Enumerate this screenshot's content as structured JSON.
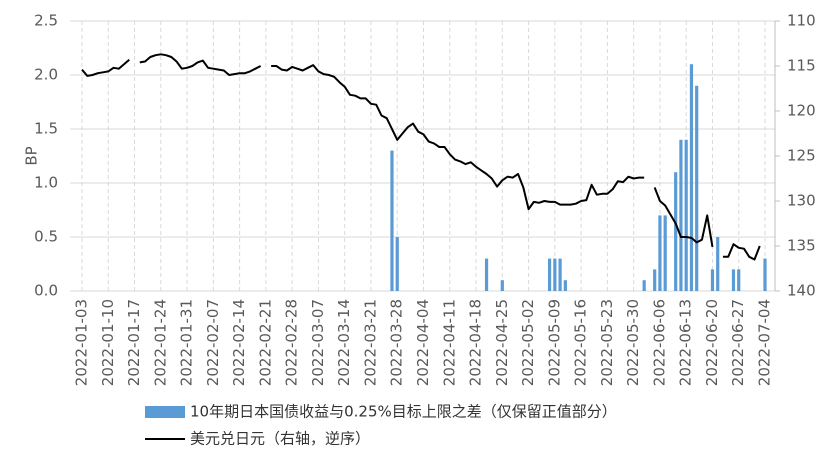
{
  "chart_data": {
    "type": "bar-line",
    "y_label": "BP",
    "x": [
      "2022-01-03",
      "2022-01-04",
      "2022-01-05",
      "2022-01-06",
      "2022-01-07",
      "2022-01-10",
      "2022-01-11",
      "2022-01-12",
      "2022-01-13",
      "2022-01-14",
      "2022-01-17",
      "2022-01-18",
      "2022-01-19",
      "2022-01-20",
      "2022-01-21",
      "2022-01-24",
      "2022-01-25",
      "2022-01-26",
      "2022-01-27",
      "2022-01-28",
      "2022-01-31",
      "2022-02-01",
      "2022-02-02",
      "2022-02-03",
      "2022-02-04",
      "2022-02-07",
      "2022-02-08",
      "2022-02-09",
      "2022-02-10",
      "2022-02-11",
      "2022-02-14",
      "2022-02-15",
      "2022-02-16",
      "2022-02-17",
      "2022-02-18",
      "2022-02-21",
      "2022-02-22",
      "2022-02-23",
      "2022-02-24",
      "2022-02-25",
      "2022-02-28",
      "2022-03-01",
      "2022-03-02",
      "2022-03-03",
      "2022-03-04",
      "2022-03-07",
      "2022-03-08",
      "2022-03-09",
      "2022-03-10",
      "2022-03-11",
      "2022-03-14",
      "2022-03-15",
      "2022-03-16",
      "2022-03-17",
      "2022-03-18",
      "2022-03-21",
      "2022-03-22",
      "2022-03-23",
      "2022-03-24",
      "2022-03-25",
      "2022-03-28",
      "2022-03-29",
      "2022-03-30",
      "2022-03-31",
      "2022-04-01",
      "2022-04-04",
      "2022-04-05",
      "2022-04-06",
      "2022-04-07",
      "2022-04-08",
      "2022-04-11",
      "2022-04-12",
      "2022-04-13",
      "2022-04-14",
      "2022-04-15",
      "2022-04-18",
      "2022-04-19",
      "2022-04-20",
      "2022-04-21",
      "2022-04-22",
      "2022-04-25",
      "2022-04-26",
      "2022-04-27",
      "2022-04-28",
      "2022-04-29",
      "2022-05-02",
      "2022-05-03",
      "2022-05-04",
      "2022-05-05",
      "2022-05-06",
      "2022-05-09",
      "2022-05-10",
      "2022-05-11",
      "2022-05-12",
      "2022-05-13",
      "2022-05-16",
      "2022-05-17",
      "2022-05-18",
      "2022-05-19",
      "2022-05-20",
      "2022-05-23",
      "2022-05-24",
      "2022-05-25",
      "2022-05-26",
      "2022-05-27",
      "2022-05-30",
      "2022-05-31",
      "2022-06-01",
      "2022-06-02",
      "2022-06-03",
      "2022-06-06",
      "2022-06-07",
      "2022-06-08",
      "2022-06-09",
      "2022-06-10",
      "2022-06-13",
      "2022-06-14",
      "2022-06-15",
      "2022-06-16",
      "2022-06-17",
      "2022-06-20",
      "2022-06-21",
      "2022-06-22",
      "2022-06-23",
      "2022-06-24",
      "2022-06-27",
      "2022-06-28",
      "2022-06-29",
      "2022-06-30",
      "2022-07-01",
      "2022-07-04"
    ],
    "series": [
      {
        "name": "10年期日本国债收益与0.25%目标上限之差（仅保留正值部分）",
        "type": "bar",
        "color": "#5b9bd5",
        "values": [
          null,
          null,
          null,
          null,
          null,
          null,
          null,
          null,
          null,
          null,
          null,
          null,
          null,
          null,
          null,
          null,
          null,
          null,
          null,
          null,
          null,
          null,
          null,
          null,
          null,
          null,
          null,
          null,
          null,
          null,
          null,
          null,
          null,
          null,
          null,
          null,
          null,
          null,
          null,
          null,
          null,
          null,
          null,
          null,
          null,
          null,
          null,
          null,
          null,
          null,
          null,
          null,
          null,
          null,
          null,
          null,
          null,
          null,
          null,
          1.3,
          0.5,
          null,
          null,
          null,
          null,
          null,
          null,
          null,
          null,
          null,
          null,
          null,
          null,
          null,
          null,
          null,
          null,
          0.3,
          null,
          null,
          0.1,
          null,
          null,
          null,
          null,
          null,
          null,
          null,
          null,
          0.3,
          0.3,
          0.3,
          0.1,
          null,
          null,
          null,
          null,
          null,
          null,
          null,
          null,
          null,
          null,
          null,
          null,
          null,
          null,
          0.1,
          null,
          0.2,
          0.7,
          0.7,
          null,
          1.1,
          1.4,
          1.4,
          2.1,
          1.9,
          null,
          null,
          0.2,
          0.5,
          null,
          null,
          0.2,
          0.2,
          null,
          null,
          null,
          null,
          0.3
        ]
      },
      {
        "name": "美元兑日元（右轴，逆序）",
        "type": "line",
        "axis": "y2",
        "color": "#000000",
        "values": [
          115.4,
          116.1,
          116.0,
          115.8,
          115.7,
          115.6,
          115.2,
          115.3,
          114.8,
          114.3,
          null,
          114.6,
          114.5,
          114.0,
          113.8,
          113.7,
          113.8,
          114.0,
          114.5,
          115.3,
          115.2,
          115.0,
          114.6,
          114.4,
          115.2,
          115.3,
          115.4,
          115.5,
          116.0,
          115.9,
          115.8,
          115.8,
          115.6,
          115.3,
          115.0,
          null,
          115.0,
          115.0,
          115.4,
          115.5,
          115.1,
          115.3,
          115.5,
          115.2,
          114.9,
          115.6,
          115.9,
          116.0,
          116.2,
          116.8,
          117.3,
          118.2,
          118.3,
          118.6,
          118.6,
          119.2,
          119.3,
          120.5,
          120.8,
          122.0,
          123.2,
          122.5,
          121.8,
          121.4,
          122.3,
          122.6,
          123.4,
          123.6,
          124.0,
          124.0,
          124.8,
          125.4,
          125.6,
          125.9,
          125.7,
          126.2,
          126.6,
          127.0,
          127.5,
          128.4,
          127.7,
          127.3,
          127.4,
          127.0,
          128.5,
          130.9,
          130.1,
          130.2,
          130.0,
          130.1,
          130.1,
          130.4,
          130.4,
          130.4,
          130.3,
          130.0,
          129.9,
          128.2,
          129.3,
          129.2,
          129.2,
          128.7,
          127.8,
          127.9,
          127.3,
          127.5,
          127.4,
          127.4,
          null,
          128.5,
          130.0,
          130.5,
          131.5,
          132.5,
          134.0,
          134.0,
          134.1,
          134.6,
          134.3,
          131.6,
          135.1,
          null,
          136.2,
          136.2,
          134.8,
          135.2,
          135.3,
          136.2,
          136.5,
          135.0,
          null
        ]
      }
    ],
    "xticks": [
      "2022-01-03",
      "2022-01-10",
      "2022-01-17",
      "2022-01-24",
      "2022-01-31",
      "2022-02-07",
      "2022-02-14",
      "2022-02-21",
      "2022-02-28",
      "2022-03-07",
      "2022-03-14",
      "2022-03-21",
      "2022-03-28",
      "2022-04-04",
      "2022-04-11",
      "2022-04-18",
      "2022-04-25",
      "2022-05-02",
      "2022-05-09",
      "2022-05-16",
      "2022-05-23",
      "2022-05-30",
      "2022-06-06",
      "2022-06-13",
      "2022-06-20",
      "2022-06-27",
      "2022-07-04"
    ],
    "ylim": [
      0,
      2.5
    ],
    "yticks": [
      {
        "value": 0,
        "label": "0.0"
      },
      0.5,
      {
        "value": 1,
        "label": "1.0"
      },
      1.5,
      {
        "value": 2,
        "label": "2.0"
      },
      2.5
    ],
    "y2lim": [
      110,
      140
    ],
    "y2ticks": [
      110,
      115,
      120,
      125,
      130,
      135,
      140
    ],
    "y2_reversed": true,
    "grid": true,
    "legend": "bottom"
  }
}
